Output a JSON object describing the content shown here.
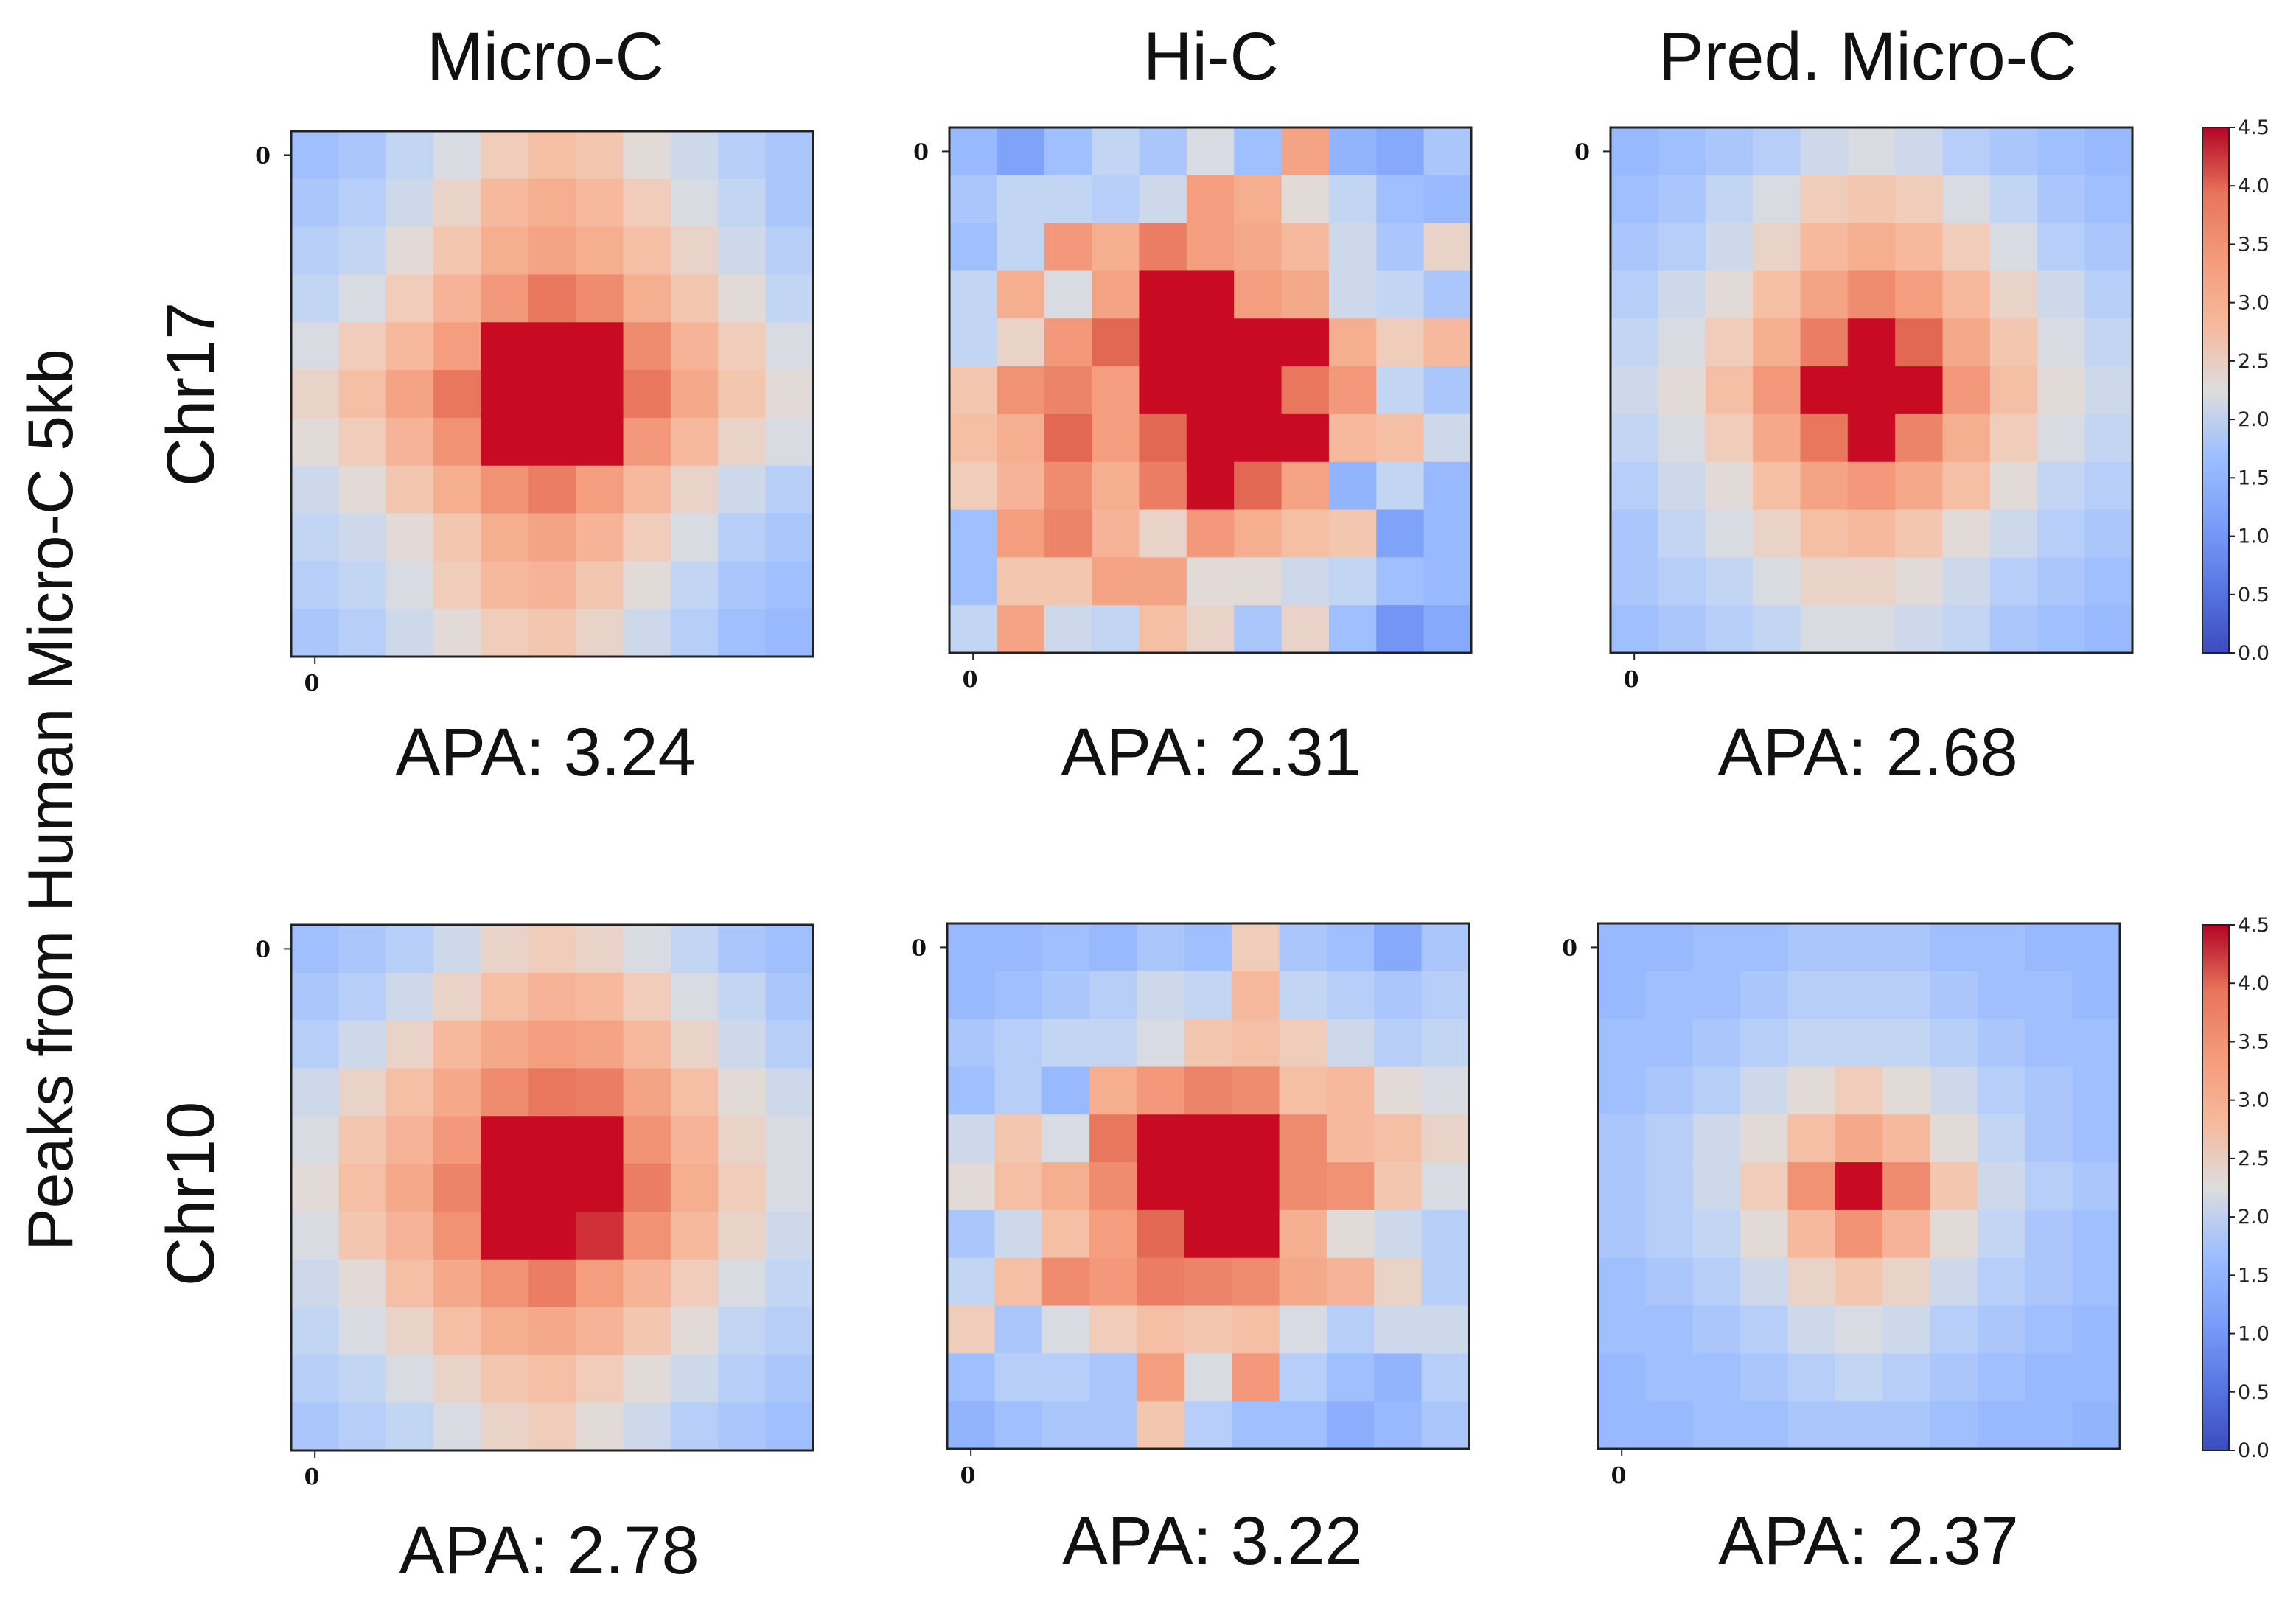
{
  "figure": {
    "y_side_label": "Peaks from Human Micro-C 5kb",
    "columns": [
      "Micro-C",
      "Hi-C",
      "Pred. Micro-C"
    ],
    "rows": [
      "Chr17",
      "Chr10"
    ]
  },
  "chart_data": {
    "type": "heatmap",
    "colormap": "coolwarm",
    "vmin": 0.0,
    "vmax": 4.5,
    "colorbar_ticks": [
      "0.0",
      "0.5",
      "1.0",
      "1.5",
      "2.0",
      "2.5",
      "3.0",
      "3.5",
      "4.0",
      "4.5"
    ],
    "axis_tick_label": "0",
    "panels": [
      {
        "row": "Chr17",
        "column": "Micro-C",
        "apa_label": "APA: 3.24",
        "matrix": [
          [
            1.7,
            1.8,
            2.0,
            2.2,
            2.5,
            2.7,
            2.6,
            2.3,
            2.1,
            1.9,
            1.8
          ],
          [
            1.8,
            1.9,
            2.1,
            2.4,
            2.8,
            3.0,
            2.8,
            2.5,
            2.2,
            2.0,
            1.8
          ],
          [
            1.9,
            2.0,
            2.3,
            2.6,
            3.0,
            3.2,
            3.0,
            2.7,
            2.4,
            2.1,
            1.9
          ],
          [
            2.0,
            2.2,
            2.5,
            2.9,
            3.4,
            3.9,
            3.6,
            3.0,
            2.6,
            2.3,
            2.0
          ],
          [
            2.2,
            2.5,
            2.8,
            3.3,
            4.5,
            4.5,
            4.5,
            3.6,
            2.9,
            2.5,
            2.2
          ],
          [
            2.4,
            2.7,
            3.2,
            3.9,
            4.5,
            4.5,
            4.5,
            3.9,
            3.1,
            2.6,
            2.3
          ],
          [
            2.3,
            2.5,
            2.9,
            3.5,
            4.5,
            4.5,
            4.5,
            3.4,
            2.8,
            2.4,
            2.2
          ],
          [
            2.1,
            2.3,
            2.6,
            3.0,
            3.5,
            3.8,
            3.3,
            2.8,
            2.4,
            2.1,
            1.9
          ],
          [
            2.0,
            2.1,
            2.3,
            2.6,
            3.0,
            3.2,
            2.9,
            2.5,
            2.2,
            1.9,
            1.8
          ],
          [
            1.9,
            2.0,
            2.2,
            2.5,
            2.8,
            2.9,
            2.6,
            2.3,
            2.0,
            1.8,
            1.7
          ],
          [
            1.8,
            1.9,
            2.1,
            2.3,
            2.5,
            2.6,
            2.4,
            2.1,
            1.9,
            1.7,
            1.6
          ]
        ]
      },
      {
        "row": "Chr17",
        "column": "Hi-C",
        "apa_label": "APA: 2.31",
        "matrix": [
          [
            1.6,
            1.2,
            1.7,
            2.0,
            1.8,
            2.2,
            1.7,
            3.2,
            1.5,
            1.3,
            1.8
          ],
          [
            1.8,
            2.0,
            2.0,
            1.9,
            2.1,
            3.3,
            3.0,
            2.3,
            2.0,
            1.7,
            1.6
          ],
          [
            1.7,
            2.0,
            3.4,
            3.0,
            3.8,
            3.3,
            3.1,
            2.8,
            2.1,
            1.8,
            2.4
          ],
          [
            2.0,
            3.0,
            2.2,
            3.2,
            4.5,
            4.5,
            3.3,
            3.1,
            2.1,
            2.0,
            1.8
          ],
          [
            2.0,
            2.4,
            3.4,
            4.0,
            4.5,
            4.5,
            4.5,
            4.5,
            3.0,
            2.5,
            2.8
          ],
          [
            2.6,
            3.5,
            3.7,
            3.3,
            4.5,
            4.5,
            4.5,
            3.9,
            3.4,
            2.0,
            1.8
          ],
          [
            2.7,
            3.0,
            4.0,
            3.3,
            4.0,
            4.5,
            4.5,
            4.5,
            2.8,
            2.7,
            2.1
          ],
          [
            2.5,
            2.9,
            3.6,
            3.0,
            3.8,
            4.5,
            4.0,
            3.2,
            1.5,
            2.0,
            1.6
          ],
          [
            1.7,
            3.3,
            3.7,
            2.9,
            2.4,
            3.4,
            3.0,
            2.7,
            2.6,
            1.2,
            1.6
          ],
          [
            1.7,
            2.6,
            2.6,
            3.2,
            3.2,
            2.3,
            2.3,
            2.1,
            2.0,
            1.7,
            1.6
          ],
          [
            2.0,
            3.2,
            2.1,
            2.0,
            2.7,
            2.4,
            1.8,
            2.4,
            1.7,
            1.0,
            1.3
          ]
        ]
      },
      {
        "row": "Chr17",
        "column": "Pred. Micro-C",
        "apa_label": "APA: 2.68",
        "matrix": [
          [
            1.6,
            1.7,
            1.8,
            1.9,
            2.1,
            2.2,
            2.1,
            1.9,
            1.8,
            1.7,
            1.6
          ],
          [
            1.7,
            1.8,
            2.0,
            2.2,
            2.5,
            2.6,
            2.5,
            2.2,
            2.0,
            1.8,
            1.7
          ],
          [
            1.8,
            1.9,
            2.1,
            2.4,
            2.8,
            3.0,
            2.8,
            2.5,
            2.2,
            1.9,
            1.8
          ],
          [
            1.9,
            2.1,
            2.3,
            2.7,
            3.2,
            3.6,
            3.3,
            2.8,
            2.4,
            2.1,
            1.9
          ],
          [
            2.0,
            2.2,
            2.5,
            3.0,
            3.8,
            4.5,
            4.0,
            3.1,
            2.6,
            2.2,
            2.0
          ],
          [
            2.1,
            2.3,
            2.7,
            3.4,
            4.5,
            4.5,
            4.5,
            3.4,
            2.7,
            2.3,
            2.1
          ],
          [
            2.0,
            2.2,
            2.5,
            3.1,
            3.9,
            4.5,
            3.7,
            3.0,
            2.5,
            2.2,
            2.0
          ],
          [
            1.9,
            2.1,
            2.3,
            2.7,
            3.2,
            3.4,
            3.1,
            2.7,
            2.3,
            2.0,
            1.9
          ],
          [
            1.8,
            2.0,
            2.2,
            2.4,
            2.7,
            2.8,
            2.6,
            2.3,
            2.1,
            1.9,
            1.8
          ],
          [
            1.8,
            1.9,
            2.0,
            2.2,
            2.4,
            2.4,
            2.3,
            2.1,
            1.9,
            1.8,
            1.7
          ],
          [
            1.7,
            1.8,
            1.9,
            2.0,
            2.2,
            2.2,
            2.1,
            2.0,
            1.8,
            1.7,
            1.6
          ]
        ]
      },
      {
        "row": "Chr10",
        "column": "Micro-C",
        "apa_label": "APA: 2.78",
        "matrix": [
          [
            1.7,
            1.8,
            1.9,
            2.1,
            2.4,
            2.5,
            2.4,
            2.2,
            2.0,
            1.8,
            1.7
          ],
          [
            1.8,
            1.9,
            2.1,
            2.4,
            2.7,
            2.9,
            2.8,
            2.5,
            2.2,
            2.0,
            1.8
          ],
          [
            1.9,
            2.1,
            2.4,
            2.8,
            3.1,
            3.3,
            3.2,
            2.8,
            2.4,
            2.1,
            1.9
          ],
          [
            2.1,
            2.4,
            2.7,
            3.1,
            3.6,
            3.9,
            3.8,
            3.2,
            2.7,
            2.3,
            2.1
          ],
          [
            2.2,
            2.6,
            2.9,
            3.4,
            4.5,
            4.5,
            4.5,
            3.5,
            2.9,
            2.4,
            2.2
          ],
          [
            2.3,
            2.7,
            3.1,
            3.7,
            4.5,
            4.5,
            4.5,
            3.8,
            3.0,
            2.5,
            2.2
          ],
          [
            2.2,
            2.6,
            2.9,
            3.5,
            4.5,
            4.5,
            4.3,
            3.5,
            2.8,
            2.4,
            2.1
          ],
          [
            2.1,
            2.3,
            2.7,
            3.1,
            3.5,
            3.8,
            3.3,
            2.9,
            2.5,
            2.2,
            2.0
          ],
          [
            2.0,
            2.2,
            2.4,
            2.7,
            3.0,
            3.1,
            2.9,
            2.6,
            2.3,
            2.0,
            1.9
          ],
          [
            1.9,
            2.0,
            2.2,
            2.4,
            2.6,
            2.7,
            2.5,
            2.3,
            2.1,
            1.9,
            1.8
          ],
          [
            1.8,
            1.9,
            2.0,
            2.2,
            2.4,
            2.5,
            2.3,
            2.1,
            1.9,
            1.8,
            1.7
          ]
        ]
      },
      {
        "row": "Chr10",
        "column": "Hi-C",
        "apa_label": "APA: 3.22",
        "matrix": [
          [
            1.6,
            1.6,
            1.7,
            1.6,
            1.8,
            1.7,
            2.5,
            1.8,
            1.7,
            1.3,
            1.8
          ],
          [
            1.6,
            1.7,
            1.8,
            1.9,
            2.1,
            2.0,
            2.8,
            2.0,
            1.9,
            1.8,
            1.9
          ],
          [
            1.8,
            1.9,
            2.0,
            2.0,
            2.2,
            2.6,
            2.7,
            2.5,
            2.1,
            1.9,
            2.0
          ],
          [
            1.7,
            1.9,
            1.6,
            3.0,
            3.4,
            3.7,
            3.6,
            2.7,
            2.8,
            2.3,
            2.2
          ],
          [
            2.1,
            2.6,
            2.2,
            3.9,
            4.5,
            4.5,
            4.5,
            3.6,
            2.8,
            2.7,
            2.4
          ],
          [
            2.3,
            2.7,
            3.0,
            3.6,
            4.5,
            4.5,
            4.5,
            3.6,
            3.5,
            2.6,
            2.2
          ],
          [
            1.8,
            2.1,
            2.7,
            3.3,
            4.0,
            4.5,
            4.5,
            3.0,
            2.3,
            2.1,
            1.9
          ],
          [
            2.0,
            2.7,
            3.6,
            3.4,
            3.8,
            3.7,
            3.6,
            3.1,
            2.9,
            2.4,
            1.9
          ],
          [
            2.5,
            1.8,
            2.2,
            2.5,
            2.7,
            2.6,
            2.7,
            2.2,
            1.9,
            2.1,
            2.1
          ],
          [
            1.7,
            1.9,
            1.9,
            1.8,
            3.3,
            2.2,
            3.4,
            1.9,
            1.7,
            1.5,
            1.9
          ],
          [
            1.5,
            1.7,
            1.8,
            1.8,
            2.6,
            1.9,
            1.7,
            1.7,
            1.4,
            1.6,
            1.8
          ]
        ]
      },
      {
        "row": "Chr10",
        "column": "Pred. Micro-C",
        "apa_label": "APA: 2.37",
        "matrix": [
          [
            1.6,
            1.6,
            1.7,
            1.7,
            1.8,
            1.8,
            1.8,
            1.7,
            1.7,
            1.6,
            1.6
          ],
          [
            1.6,
            1.7,
            1.7,
            1.8,
            1.9,
            1.9,
            1.9,
            1.8,
            1.7,
            1.7,
            1.6
          ],
          [
            1.7,
            1.7,
            1.8,
            1.9,
            2.0,
            2.0,
            2.0,
            1.9,
            1.8,
            1.7,
            1.7
          ],
          [
            1.7,
            1.8,
            1.9,
            2.1,
            2.3,
            2.5,
            2.3,
            2.1,
            1.9,
            1.8,
            1.7
          ],
          [
            1.8,
            1.9,
            2.1,
            2.3,
            2.7,
            3.1,
            2.8,
            2.3,
            2.0,
            1.8,
            1.7
          ],
          [
            1.8,
            1.9,
            2.1,
            2.5,
            3.5,
            4.5,
            3.6,
            2.6,
            2.1,
            1.9,
            1.8
          ],
          [
            1.8,
            1.9,
            2.0,
            2.3,
            2.8,
            3.5,
            2.9,
            2.3,
            2.0,
            1.8,
            1.7
          ],
          [
            1.7,
            1.8,
            1.9,
            2.1,
            2.4,
            2.6,
            2.4,
            2.1,
            1.9,
            1.8,
            1.7
          ],
          [
            1.7,
            1.7,
            1.8,
            1.9,
            2.1,
            2.2,
            2.1,
            1.9,
            1.8,
            1.7,
            1.6
          ],
          [
            1.6,
            1.7,
            1.7,
            1.8,
            1.9,
            2.0,
            1.9,
            1.8,
            1.7,
            1.6,
            1.6
          ],
          [
            1.6,
            1.6,
            1.7,
            1.7,
            1.8,
            1.8,
            1.8,
            1.7,
            1.6,
            1.6,
            1.5
          ]
        ]
      }
    ],
    "colorbars": [
      {
        "row": "Chr17"
      },
      {
        "row": "Chr10"
      }
    ]
  }
}
